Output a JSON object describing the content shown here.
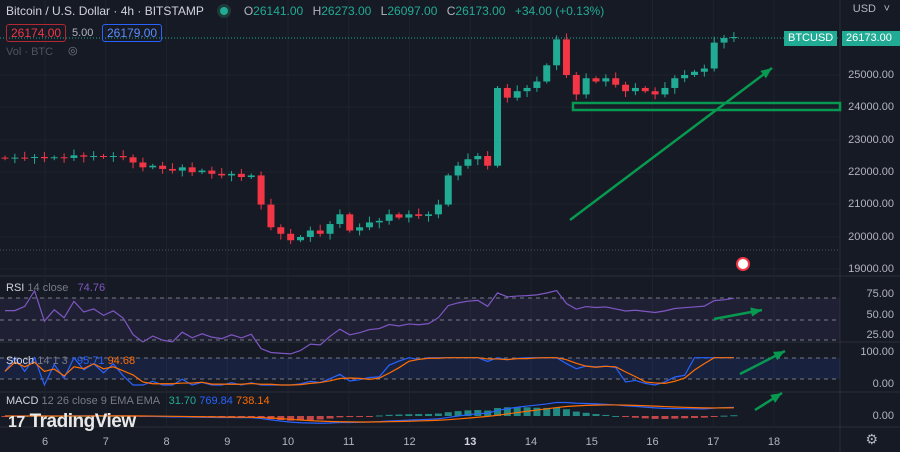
{
  "header": {
    "symbol": "Bitcoin / U.S. Dollar · 4h · BITSTAMP",
    "o_label": "O",
    "o": "26141.00",
    "h_label": "H",
    "h": "26273.00",
    "l_label": "L",
    "l": "26097.00",
    "c_label": "C",
    "c": "26173.00",
    "change": "+34.00 (+0.13%)"
  },
  "sell_price": "26174.00",
  "spread": "5.00",
  "buy_price": "26179.00",
  "volume_label": "Vol · BTC",
  "currency": "USD",
  "price_tag": {
    "symbol": "BTCUSD",
    "price": "26173.00"
  },
  "price_axis": [
    "25000.00",
    "24000.00",
    "23000.00",
    "22000.00",
    "21000.00",
    "20000.00",
    "19000.00"
  ],
  "rsi": {
    "label": "RSI",
    "params": "14 close",
    "value": "74.76",
    "axis": [
      "75.00",
      "50.00",
      "25.00"
    ]
  },
  "stoch": {
    "label": "Stoch",
    "params": "14 1 3",
    "k": "95.71",
    "d": "94.68",
    "axis": [
      "100.00",
      "0.00"
    ]
  },
  "macd": {
    "label": "MACD",
    "params": "12 26 close 9 EMA EMA",
    "hist": "31.70",
    "macd": "769.84",
    "signal": "738.14",
    "axis": [
      "0.00"
    ]
  },
  "days": [
    "6",
    "7",
    "8",
    "9",
    "10",
    "11",
    "12",
    "13",
    "14",
    "15",
    "16",
    "17",
    "18"
  ],
  "logo": "TradingView",
  "colors": {
    "up": "#22ab94",
    "down": "#f23645",
    "drawing": "#089950",
    "rsi": "#7e57c2",
    "k": "#2962ff",
    "d": "#ff6d00"
  },
  "chart_data": {
    "type": "candlestick",
    "interval": "4h",
    "closes": [
      22430,
      22450,
      22440,
      22470,
      22430,
      22460,
      22440,
      22520,
      22480,
      22500,
      22470,
      22500,
      22460,
      22300,
      22150,
      22200,
      22100,
      22050,
      22150,
      22000,
      22050,
      21950,
      21900,
      21950,
      21850,
      21900,
      21000,
      20300,
      20100,
      19900,
      20000,
      20200,
      20100,
      20400,
      20700,
      20200,
      20300,
      20450,
      20500,
      20700,
      20600,
      20700,
      20650,
      20700,
      21000,
      21900,
      22200,
      22400,
      22500,
      22200,
      24600,
      24300,
      24500,
      24600,
      24800,
      25300,
      26100,
      25000,
      24400,
      24900,
      24800,
      24900,
      24700,
      24500,
      24600,
      24500,
      24400,
      24600,
      24900,
      25000,
      25100,
      25200,
      26000,
      26141,
      26173
    ],
    "ylim": [
      18800,
      26600
    ]
  }
}
